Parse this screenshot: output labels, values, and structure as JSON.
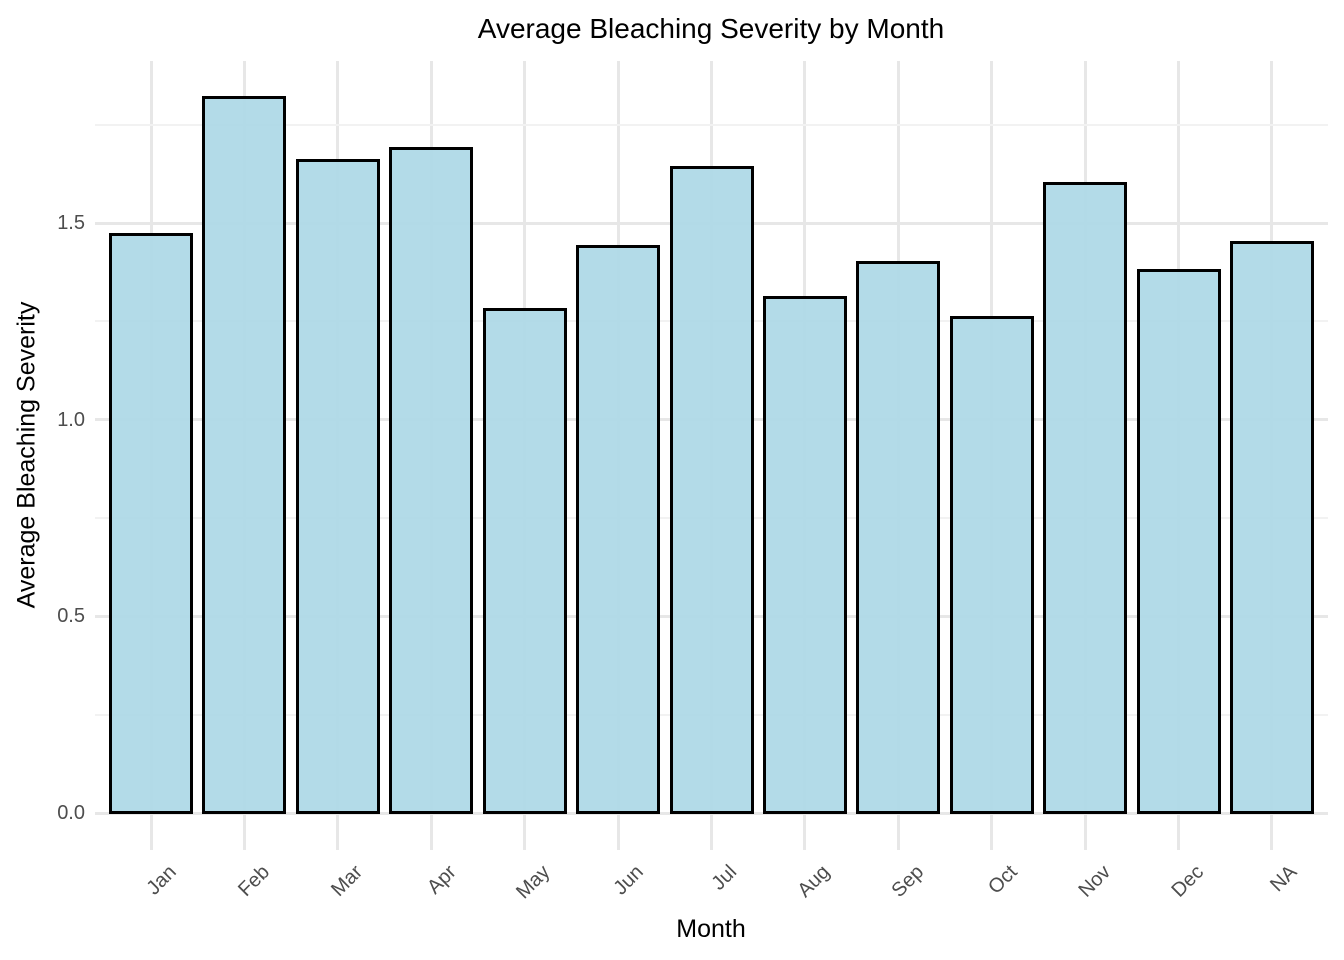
{
  "chart_data": {
    "type": "bar",
    "title": "Average Bleaching Severity by Month",
    "xlabel": "Month",
    "ylabel": "Average Bleaching Severity",
    "categories": [
      "Jan",
      "Feb",
      "Mar",
      "Apr",
      "May",
      "Jun",
      "Jul",
      "Aug",
      "Sep",
      "Oct",
      "Nov",
      "Dec",
      "NA"
    ],
    "values": [
      1.47,
      1.82,
      1.66,
      1.69,
      1.28,
      1.44,
      1.64,
      1.31,
      1.4,
      1.26,
      1.6,
      1.38,
      1.45
    ],
    "yticks": [
      "0.0",
      "0.5",
      "1.0",
      "1.5"
    ],
    "ylim": [
      0,
      1.91
    ],
    "grid": "major+minor",
    "legend": "none",
    "colors": {
      "bar_fill": "#ADD8E6",
      "bar_border": "#000000",
      "grid_major": "#E7E7E7",
      "grid_minor": "#F2F2F2",
      "axis_text": "#4D4D4D",
      "title_text": "#000000",
      "background": "#FFFFFF"
    }
  }
}
